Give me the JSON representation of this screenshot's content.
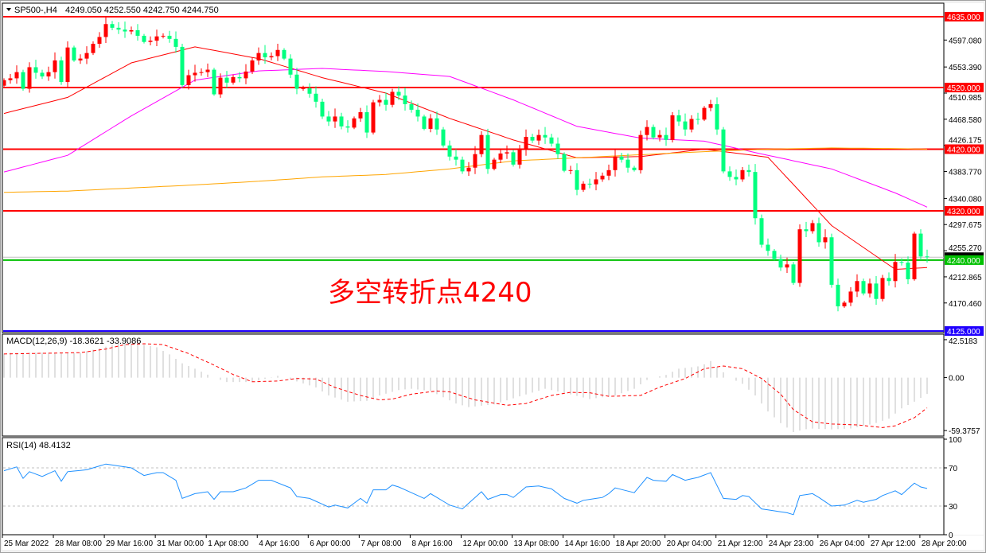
{
  "header": {
    "symbol": "SP500-,H4",
    "ohlc": "4249.050 4252.550 4242.750 4244.750",
    "menu_icon": "triangle-down-icon"
  },
  "annotation": {
    "text": "多空转折点4240",
    "color": "#ff0000"
  },
  "colors": {
    "up_candle": "#ff0000",
    "down_candle": "#00ff7f",
    "ma_fast": "#ff0000",
    "ma_mid": "#ff00ff",
    "ma_slow": "#ffa500",
    "macd_hist": "#c0c0c0",
    "macd_signal": "#ff0000",
    "rsi": "#1e90ff",
    "level": "#c0c0c0"
  },
  "chart_data": [
    {
      "type": "candlestick",
      "title": "SP500-,H4",
      "ylim": [
        4122.4,
        4655.6
      ],
      "first_open": 4523,
      "close": [
        4532,
        4535,
        4545,
        4518,
        4553,
        4544,
        4538,
        4545,
        4564,
        4529,
        4585,
        4564,
        4567,
        4576,
        4591,
        4602,
        4623,
        4617,
        4614,
        4611,
        4613,
        4604,
        4594,
        4596,
        4603,
        4604,
        4599,
        4586,
        4524,
        4540,
        4544,
        4545,
        4549,
        4509,
        4536,
        4528,
        4537,
        4535,
        4546,
        4564,
        4576,
        4569,
        4571,
        4581,
        4567,
        4541,
        4518,
        4519,
        4510,
        4497,
        4473,
        4465,
        4473,
        4457,
        4455,
        4470,
        4480,
        4447,
        4496,
        4500,
        4492,
        4513,
        4507,
        4493,
        4484,
        4473,
        4453,
        4470,
        4452,
        4426,
        4408,
        4403,
        4384,
        4390,
        4412,
        4443,
        4388,
        4403,
        4413,
        4415,
        4395,
        4419,
        4440,
        4434,
        4443,
        4439,
        4429,
        4412,
        4385,
        4386,
        4354,
        4364,
        4363,
        4371,
        4377,
        4386,
        4408,
        4403,
        4390,
        4386,
        4443,
        4456,
        4439,
        4443,
        4435,
        4475,
        4465,
        4452,
        4469,
        4468,
        4487,
        4493,
        4452,
        4384,
        4375,
        4371,
        4386,
        4383,
        4308,
        4265,
        4255,
        4242,
        4228,
        4233,
        4203,
        4290,
        4287,
        4300,
        4269,
        4277,
        4200,
        4165,
        4171,
        4189,
        4206,
        4186,
        4202,
        4177,
        4211,
        4206,
        4237,
        4236,
        4209,
        4283,
        4246,
        4244.75
      ],
      "moving_averages": [
        {
          "color": "#ff0000",
          "bars": [
            0,
            10,
            20,
            30,
            40,
            50,
            60,
            70,
            80,
            90,
            100,
            110,
            120,
            130,
            140,
            145
          ],
          "values": [
            4478,
            4504,
            4560,
            4586,
            4567,
            4536,
            4511,
            4470,
            4435,
            4406,
            4408,
            4420,
            4407,
            4296,
            4225,
            4228
          ]
        },
        {
          "color": "#ff00ff",
          "bars": [
            0,
            10,
            20,
            30,
            40,
            50,
            60,
            70,
            80,
            90,
            100,
            110,
            120,
            130,
            140,
            145
          ],
          "values": [
            4383,
            4410,
            4474,
            4532,
            4547,
            4551,
            4546,
            4538,
            4500,
            4457,
            4438,
            4433,
            4410,
            4388,
            4349,
            4326
          ]
        },
        {
          "color": "#ffa500",
          "bars": [
            0,
            10,
            20,
            30,
            40,
            50,
            60,
            70,
            80,
            90,
            100,
            110,
            120,
            130,
            140,
            145
          ],
          "values": [
            4350,
            4352,
            4357,
            4362,
            4368,
            4375,
            4379,
            4388,
            4401,
            4406,
            4411,
            4416,
            4420,
            4422,
            4421,
            4420
          ]
        }
      ],
      "hlines": [
        {
          "price": 4635,
          "color": "#ff0000",
          "label": "4635.000"
        },
        {
          "price": 4520,
          "color": "#ff0000",
          "label": "4520.000"
        },
        {
          "price": 4420,
          "color": "#ff0000",
          "label": "4420.000"
        },
        {
          "price": 4320,
          "color": "#ff0000",
          "label": "4320.000"
        },
        {
          "price": 4240,
          "color": "#00c000",
          "label": "4240.000"
        },
        {
          "price": 4125,
          "color": "#2000ff",
          "label": "4125.000"
        }
      ],
      "current_price": 4244.75,
      "yticks": [
        {
          "price": 4597.08,
          "label": "4597.080"
        },
        {
          "price": 4553.39,
          "label": "4553.390"
        },
        {
          "price": 4510.985,
          "label": "4510.985"
        },
        {
          "price": 4468.58,
          "label": "4468.580"
        },
        {
          "price": 4426.175,
          "label": "4426.175"
        },
        {
          "price": 4383.77,
          "label": "4383.770"
        },
        {
          "price": 4340.08,
          "label": "4340.080"
        },
        {
          "price": 4297.675,
          "label": "4297.675"
        },
        {
          "price": 4255.27,
          "label": "4255.270"
        },
        {
          "price": 4212.865,
          "label": "4212.865"
        },
        {
          "price": 4170.46,
          "label": "4170.460"
        }
      ],
      "xticks": [
        "25 Mar 2022",
        "28 Mar 08:00",
        "29 Mar 16:00",
        "31 Mar 00:00",
        "1 Apr 08:00",
        "4 Apr 16:00",
        "6 Apr 00:00",
        "7 Apr 08:00",
        "8 Apr 16:00",
        "12 Apr 00:00",
        "13 Apr 08:00",
        "14 Apr 16:00",
        "18 Apr 20:00",
        "20 Apr 04:00",
        "21 Apr 12:00",
        "24 Apr 23:00",
        "26 Apr 04:00",
        "27 Apr 12:00",
        "28 Apr 20:00"
      ]
    },
    {
      "type": "bar",
      "title": "MACD(12,26,9) -18.3621 -33.9086",
      "ylim": [
        -65.5,
        47.8
      ],
      "yticks": [
        {
          "value": 42.5183,
          "label": "42.5183"
        },
        {
          "value": 0,
          "label": "0.00"
        },
        {
          "value": -59.3757,
          "label": "-59.3757"
        }
      ],
      "main": {
        "bars": [
          0,
          1,
          12,
          18,
          21,
          24,
          26,
          28,
          30,
          33,
          35,
          39,
          43,
          45,
          49,
          51,
          54,
          57,
          59,
          62,
          64,
          67,
          71,
          73,
          77,
          81,
          85,
          88,
          92,
          96,
          99,
          101,
          102,
          104,
          106,
          109.5,
          111,
          112,
          114,
          116,
          118,
          120,
          122,
          124,
          126.5,
          130,
          133,
          136.5,
          139,
          141,
          143,
          145
        ],
        "values": [
          27,
          28,
          28,
          38,
          38,
          34,
          26,
          16,
          10,
          0,
          -5,
          -5,
          2,
          -2,
          -11,
          -20,
          -27,
          -26,
          -20,
          -14,
          -12.5,
          -15,
          -29,
          -33,
          -30,
          -21,
          -12.5,
          -17,
          -24,
          -20,
          -12.5,
          -2.6,
          0,
          3,
          10,
          13,
          18.6,
          12,
          0,
          -7,
          -20,
          -38,
          -51,
          -61,
          -57,
          -58,
          -57,
          -52,
          -46,
          -34.5,
          -27,
          -18.3621
        ]
      },
      "signal": {
        "bars": [
          0,
          12,
          16,
          19,
          22,
          25,
          29,
          33,
          36,
          39,
          43,
          46,
          49,
          52,
          56,
          59,
          61,
          64,
          68,
          70,
          74,
          79,
          82,
          86,
          89,
          92,
          95,
          100,
          103,
          107,
          110,
          113,
          116,
          119,
          122,
          124,
          127,
          130,
          134,
          138,
          140,
          143,
          145
        ],
        "values": [
          26.5,
          28,
          32,
          37,
          38,
          37,
          27,
          14,
          3.5,
          -4.7,
          -3.8,
          -1,
          -1.5,
          -11,
          -20,
          -25,
          -24,
          -18.6,
          -15,
          -16,
          -25,
          -31,
          -29,
          -20,
          -16.5,
          -17,
          -21,
          -20,
          -10.6,
          -1,
          10,
          13,
          10,
          -1,
          -18.6,
          -36,
          -49.6,
          -52,
          -53,
          -56,
          -54,
          -45,
          -33.9086
        ]
      }
    },
    {
      "type": "line",
      "title": "RSI(14) 48.4132",
      "ylim": [
        0,
        100
      ],
      "levels": [
        70,
        30
      ],
      "yticks": [
        {
          "value": 100,
          "label": "100"
        },
        {
          "value": 70,
          "label": "70"
        },
        {
          "value": 30,
          "label": "30"
        },
        {
          "value": 0,
          "label": "0"
        }
      ],
      "bars": [
        0,
        2,
        3,
        4,
        6,
        8,
        9,
        10,
        13,
        16,
        20,
        22,
        24,
        25,
        27,
        28,
        30,
        32,
        33,
        34,
        36,
        38,
        40,
        42,
        45,
        46,
        48,
        51,
        52,
        54,
        56,
        57,
        58,
        60,
        61,
        62,
        66,
        67,
        70,
        72,
        75,
        76,
        78,
        79,
        80,
        82,
        84,
        86,
        88,
        90,
        91,
        94,
        95,
        96,
        99,
        101,
        102,
        104,
        105,
        107,
        109,
        111,
        113,
        115,
        116,
        117,
        119,
        121,
        123,
        124,
        125,
        127,
        128,
        130,
        132,
        134,
        135,
        137,
        138,
        140,
        141,
        143,
        144,
        145
      ],
      "values": [
        67,
        71,
        59,
        66,
        61,
        67,
        56,
        66,
        68,
        74,
        70,
        62,
        65,
        65,
        57,
        38,
        43,
        45,
        37,
        45,
        45,
        49,
        57,
        57,
        49,
        40,
        38,
        29,
        31,
        28,
        38,
        33,
        47,
        47,
        52,
        50,
        38,
        43,
        31,
        27,
        45,
        37,
        42,
        42,
        39,
        50,
        51,
        48,
        38,
        33,
        36,
        39,
        43,
        49,
        44,
        60,
        57,
        56,
        63,
        57,
        60,
        65,
        38,
        37,
        41,
        40,
        27,
        25,
        23,
        21,
        41,
        43,
        39,
        30,
        31,
        36,
        34,
        37,
        41,
        46,
        42,
        54,
        50,
        48.4132
      ]
    }
  ]
}
